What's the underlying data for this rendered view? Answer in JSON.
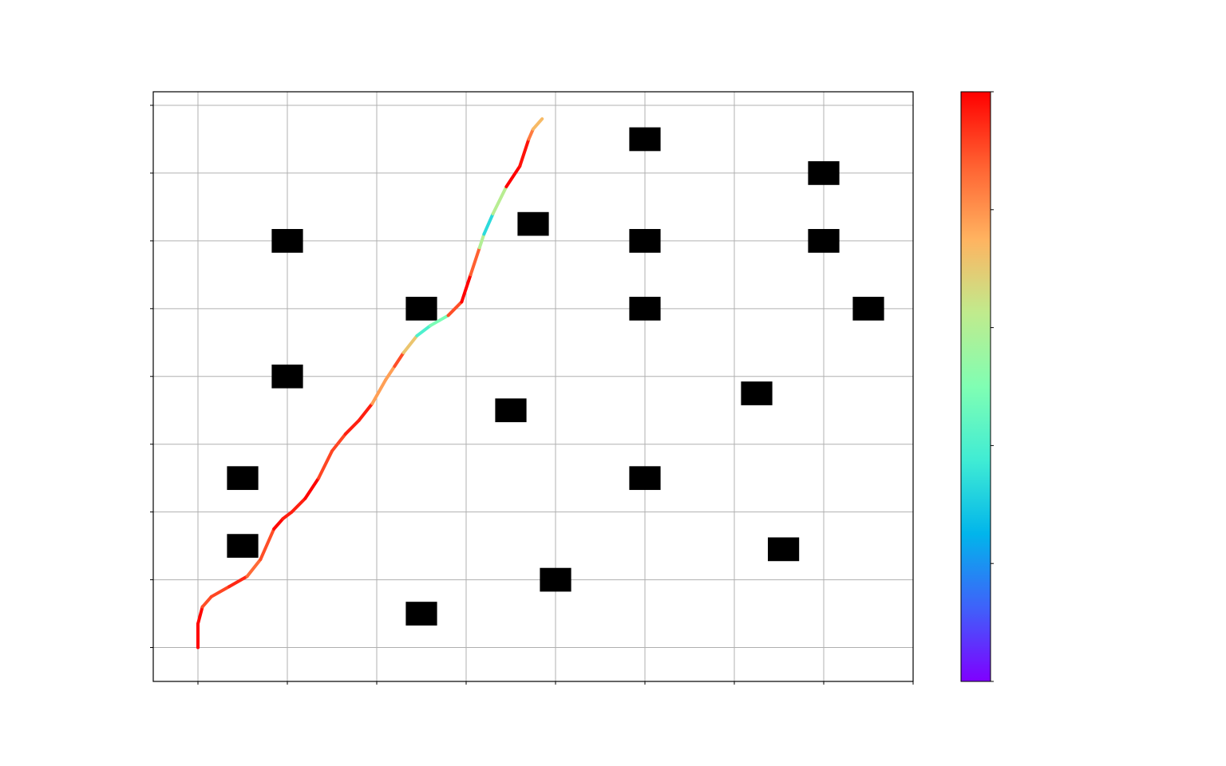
{
  "chart_data": {
    "type": "scatter",
    "title": "",
    "xlabel": "",
    "ylabel": "",
    "xlim": [
      -0.5,
      8
    ],
    "ylim": [
      -0.5,
      8.2
    ],
    "xticks": [
      0,
      1,
      2,
      3,
      4,
      5,
      6,
      7,
      8
    ],
    "yticks": [
      0,
      1,
      2,
      3,
      4,
      5,
      6,
      7,
      8
    ],
    "grid": true,
    "colormap": "rainbow",
    "colorbar": {
      "location": "right",
      "stops": [
        "#7f00ff",
        "#3f61fa",
        "#01b5eb",
        "#40ecd4",
        "#80feb3",
        "#c0eb8d",
        "#ffb360",
        "#ff6131",
        "#ff0000"
      ]
    },
    "obstacles": [
      {
        "x": 1.0,
        "y": 6.0
      },
      {
        "x": 2.5,
        "y": 5.0
      },
      {
        "x": 1.0,
        "y": 4.0
      },
      {
        "x": 0.5,
        "y": 2.5
      },
      {
        "x": 0.5,
        "y": 1.5
      },
      {
        "x": 2.5,
        "y": 0.5
      },
      {
        "x": 4.0,
        "y": 1.0
      },
      {
        "x": 3.5,
        "y": 3.5
      },
      {
        "x": 3.75,
        "y": 6.25
      },
      {
        "x": 5.0,
        "y": 7.5
      },
      {
        "x": 5.0,
        "y": 6.0
      },
      {
        "x": 5.0,
        "y": 5.0
      },
      {
        "x": 5.0,
        "y": 2.5
      },
      {
        "x": 6.25,
        "y": 3.75
      },
      {
        "x": 6.55,
        "y": 1.45
      },
      {
        "x": 7.0,
        "y": 7.0
      },
      {
        "x": 7.0,
        "y": 6.0
      },
      {
        "x": 7.5,
        "y": 5.0
      }
    ],
    "path": {
      "x": [
        0.0,
        0.0,
        0.05,
        0.15,
        0.35,
        0.55,
        0.7,
        0.85,
        0.95,
        1.05,
        1.2,
        1.35,
        1.5,
        1.65,
        1.8,
        1.95,
        2.1,
        2.2,
        2.3,
        2.45,
        2.6,
        2.8,
        2.95,
        3.05,
        3.15,
        3.2,
        3.3,
        3.45,
        3.6,
        3.7,
        3.75,
        3.85
      ],
      "y": [
        0.0,
        0.35,
        0.6,
        0.75,
        0.9,
        1.05,
        1.3,
        1.75,
        1.9,
        2.0,
        2.2,
        2.5,
        2.9,
        3.15,
        3.35,
        3.6,
        3.95,
        4.15,
        4.35,
        4.6,
        4.75,
        4.9,
        5.1,
        5.5,
        5.9,
        6.1,
        6.4,
        6.8,
        7.1,
        7.5,
        7.65,
        7.8
      ],
      "color_value": [
        1.0,
        1.0,
        0.98,
        0.82,
        1.0,
        0.9,
        0.82,
        0.98,
        1.0,
        0.92,
        1.0,
        1.0,
        0.82,
        1.0,
        0.92,
        1.0,
        0.56,
        1.0,
        0.8,
        0.62,
        0.18,
        0.8,
        1.0,
        1.0,
        0.75,
        0.45,
        0.22,
        1.0,
        1.0,
        0.95,
        0.72,
        0.75
      ]
    }
  }
}
